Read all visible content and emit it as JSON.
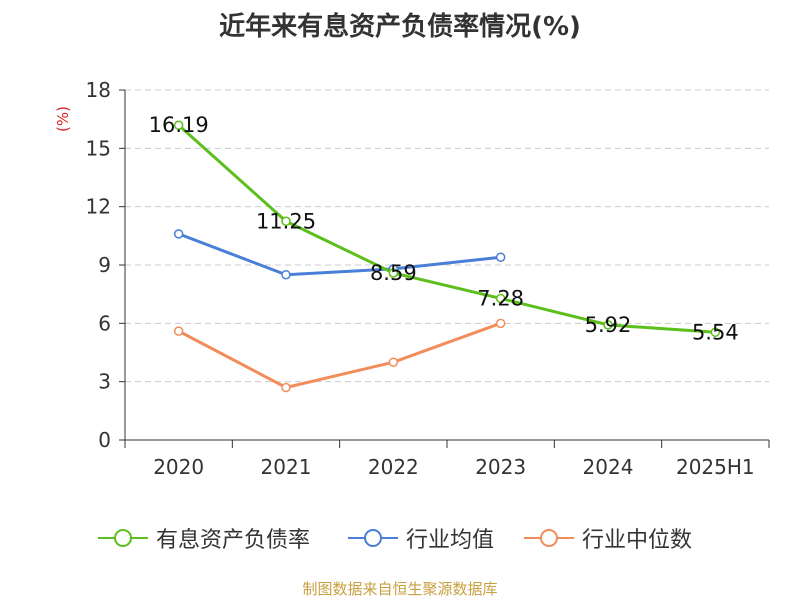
{
  "title": "近年来有息资产负债率情况(%)",
  "y_unit": "(%)",
  "source": "制图数据来自恒生聚源数据库",
  "colors": {
    "debt_ratio": "#5cbf1b",
    "industry_mean": "#4a7fd8",
    "industry_median": "#f28c5a",
    "grid": "#cccccc",
    "axis": "#333333"
  },
  "chart_data": {
    "type": "line",
    "categories": [
      "2020",
      "2021",
      "2022",
      "2023",
      "2024",
      "2025H1"
    ],
    "ylim": [
      0,
      18
    ],
    "yticks": [
      0,
      3,
      6,
      9,
      12,
      15,
      18
    ],
    "grid": "horizontal dashed",
    "legend": "bottom",
    "series": [
      {
        "name": "有息资产负债率",
        "key": "debt_ratio",
        "values": [
          16.19,
          11.25,
          8.59,
          7.28,
          5.92,
          5.54
        ],
        "labels": [
          "16.19",
          "11.25",
          "8.59",
          "7.28",
          "5.92",
          "5.54"
        ]
      },
      {
        "name": "行业均值",
        "key": "industry_mean",
        "values": [
          10.6,
          8.5,
          8.8,
          9.4,
          null,
          null
        ]
      },
      {
        "name": "行业中位数",
        "key": "industry_median",
        "values": [
          5.6,
          2.7,
          4.0,
          6.0,
          null,
          null
        ]
      }
    ]
  }
}
